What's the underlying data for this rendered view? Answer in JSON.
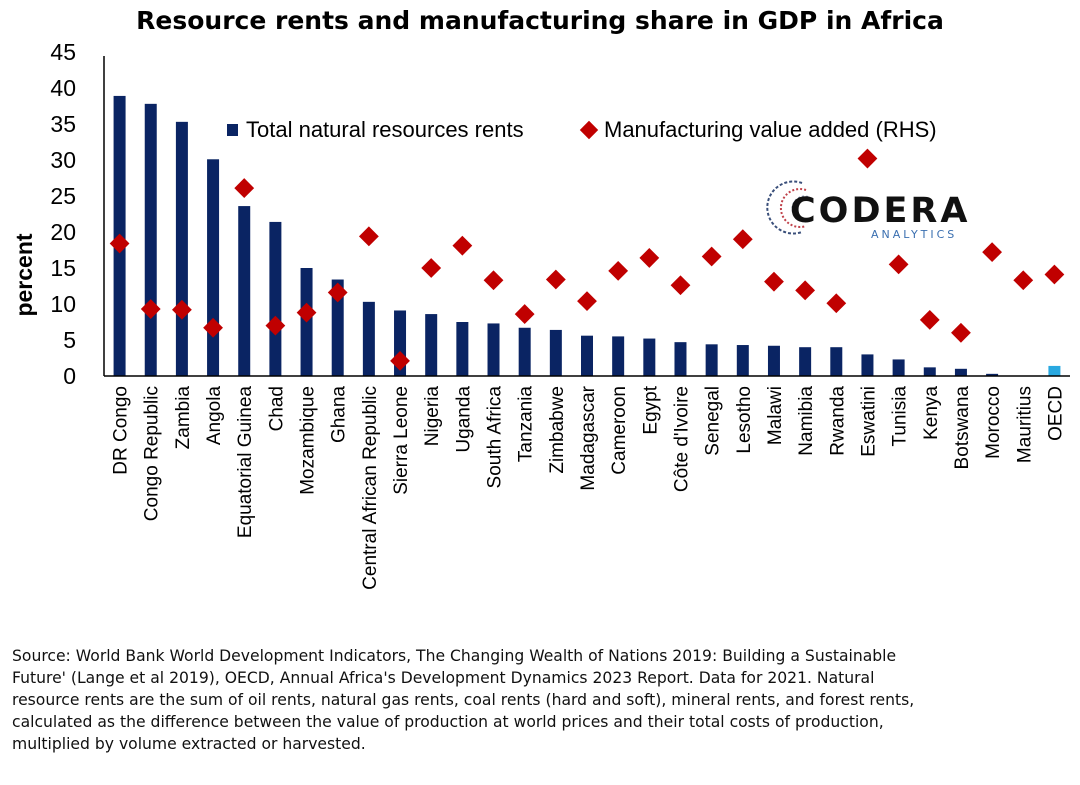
{
  "chart_data": {
    "type": "bar",
    "title": "Resource rents and manufacturing share in GDP in Africa",
    "ylabel": "percent",
    "ylim": [
      0,
      45
    ],
    "yticks": [
      "0",
      "5",
      "10",
      "15",
      "20",
      "25",
      "30",
      "35",
      "40",
      "45"
    ],
    "categories": [
      "DR Congo",
      "Congo Republic",
      "Zambia",
      "Angola",
      "Equatorial Guinea",
      "Chad",
      "Mozambique",
      "Ghana",
      "Central African Republic",
      "Sierra Leone",
      "Nigeria",
      "Uganda",
      "South Africa",
      "Tanzania",
      "Zimbabwe",
      "Madagascar",
      "Cameroon",
      "Egypt",
      "Côte d'Ivoire",
      "Senegal",
      "Lesotho",
      "Malawi",
      "Namibia",
      "Rwanda",
      "Eswatini",
      "Tunisia",
      "Kenya",
      "Botswana",
      "Morocco",
      "Mauritius",
      "OECD"
    ],
    "series": [
      {
        "name": "Total natural resources rents",
        "kind": "bar",
        "color": "#0a2463",
        "highlight_color": "#29a8e0",
        "highlight_category": "OECD",
        "values": [
          38.9,
          37.8,
          35.3,
          30.1,
          23.6,
          21.4,
          15.0,
          13.4,
          10.3,
          9.1,
          8.6,
          7.5,
          7.3,
          6.7,
          6.4,
          5.6,
          5.5,
          5.2,
          4.7,
          4.4,
          4.3,
          4.2,
          4.0,
          4.0,
          3.0,
          2.3,
          1.2,
          1.0,
          0.3,
          0.0,
          1.4
        ]
      },
      {
        "name": "Manufacturing value added (RHS)",
        "kind": "marker",
        "color": "#c00000",
        "values": [
          18.4,
          9.3,
          9.2,
          6.7,
          26.1,
          7.0,
          8.8,
          11.6,
          19.4,
          2.1,
          15.0,
          18.1,
          13.3,
          8.6,
          13.4,
          10.4,
          14.6,
          16.4,
          12.6,
          16.6,
          19.0,
          13.1,
          11.9,
          10.1,
          30.2,
          15.5,
          7.8,
          6.0,
          17.2,
          13.3,
          14.1
        ]
      }
    ],
    "legend_position": "top-center",
    "grid": false
  },
  "logo": {
    "name": "CODERA",
    "tagline": "ANALYTICS"
  },
  "source_lines": [
    "Source: World Bank World Development Indicators, The Changing Wealth of Nations 2019: Building a Sustainable",
    "Future' (Lange et al 2019), OECD, Annual Africa's Development Dynamics 2023 Report. Data for 2021. Natural",
    "resource rents are the sum of oil rents, natural gas rents, coal rents (hard and soft), mineral rents, and forest rents,",
    "calculated as the difference between the value of production at world prices and their total costs of production,",
    "multiplied by volume extracted or harvested."
  ]
}
